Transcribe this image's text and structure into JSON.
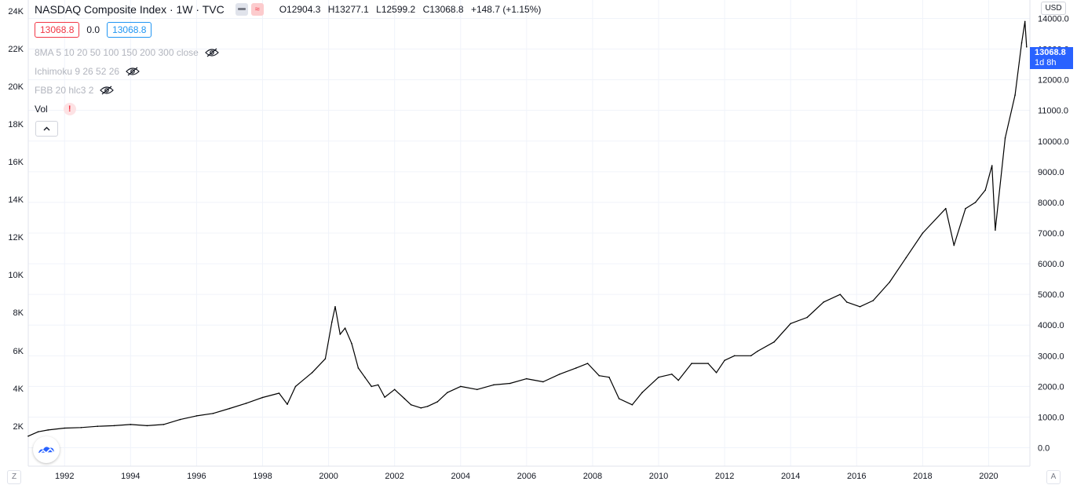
{
  "header": {
    "title": "NASDAQ Composite Index · 1W · TVC",
    "ohlc": {
      "open": "O12904.3",
      "high": "H13277.1",
      "low": "L12599.2",
      "close": "C13068.8",
      "change": "+148.7 (+1.15%)"
    },
    "sell_price": "13068.8",
    "spread": "0.0",
    "buy_price": "13068.8",
    "market_icon": "flag-icon",
    "wave_icon_label": "≈"
  },
  "indicators": [
    {
      "label": "8MA 5 10 20 50 100 150 200 300 close",
      "icon": "eye-off-icon"
    },
    {
      "label": "Ichimoku 9 26 52 26",
      "icon": "eye-off-icon"
    },
    {
      "label": "FBB 20 hlc3 2",
      "icon": "eye-off-icon"
    },
    {
      "label": "Vol",
      "icon": "warning-icon",
      "warning": "!"
    }
  ],
  "left_axis": {
    "labels": [
      "24K",
      "22K",
      "20K",
      "18K",
      "16K",
      "14K",
      "12K",
      "10K",
      "8K",
      "6K",
      "4K",
      "2K"
    ]
  },
  "right_axis": {
    "currency": "USD",
    "labels": [
      "14000.0",
      "13000.0",
      "12000.0",
      "11000.0",
      "10000.0",
      "9000.0",
      "8000.0",
      "7000.0",
      "6000.0",
      "5000.0",
      "4000.0",
      "3000.0",
      "2000.0",
      "1000.0",
      "0.0"
    ],
    "last_price": "13068.8",
    "countdown": "1d 8h"
  },
  "bottom_axis": {
    "labels": [
      "1992",
      "1994",
      "1996",
      "1998",
      "2000",
      "2002",
      "2004",
      "2006",
      "2008",
      "2010",
      "2012",
      "2014",
      "2016",
      "2018",
      "2020"
    ],
    "left_button": "Z",
    "right_button": "A"
  },
  "colors": {
    "line": "#000000",
    "grid": "#f0f3fa",
    "sell": "#f23645",
    "buy": "#2196f3",
    "price_tag": "#2962ff",
    "indicator_text": "#b2b5be"
  },
  "chart_data": {
    "type": "line",
    "title": "NASDAQ Composite Index · 1W · TVC",
    "xlabel": "",
    "ylabel": "",
    "x_range": [
      1990.9,
      2021.25
    ],
    "ylim_right": [
      -600,
      14600
    ],
    "grid": true,
    "series": [
      {
        "name": "",
        "x": [
          1990.9,
          1991.2,
          1991.5,
          1992.0,
          1992.5,
          1993.0,
          1993.5,
          1994.0,
          1994.5,
          1995.0,
          1995.5,
          1996.0,
          1996.5,
          1997.0,
          1997.5,
          1998.0,
          1998.5,
          1998.75,
          1999.0,
          1999.5,
          1999.9,
          2000.1,
          2000.2,
          2000.35,
          2000.5,
          2000.7,
          2000.9,
          2001.1,
          2001.3,
          2001.5,
          2001.7,
          2002.0,
          2002.3,
          2002.5,
          2002.8,
          2003.0,
          2003.3,
          2003.6,
          2004.0,
          2004.5,
          2005.0,
          2005.5,
          2006.0,
          2006.5,
          2007.0,
          2007.5,
          2007.85,
          2008.2,
          2008.5,
          2008.8,
          2009.2,
          2009.5,
          2010.0,
          2010.4,
          2010.6,
          2011.0,
          2011.5,
          2011.75,
          2012.0,
          2012.3,
          2012.8,
          2013.0,
          2013.5,
          2014.0,
          2014.5,
          2015.0,
          2015.5,
          2015.7,
          2016.1,
          2016.5,
          2017.0,
          2017.5,
          2018.0,
          2018.7,
          2018.95,
          2019.3,
          2019.6,
          2019.9,
          2020.1,
          2020.2,
          2020.5,
          2020.8,
          2021.0,
          2021.1,
          2021.15
        ],
        "y": [
          380,
          520,
          580,
          640,
          660,
          700,
          720,
          760,
          720,
          760,
          920,
          1040,
          1120,
          1280,
          1450,
          1640,
          1780,
          1420,
          2000,
          2450,
          2900,
          4100,
          4600,
          3700,
          3900,
          3400,
          2600,
          2300,
          2000,
          2050,
          1650,
          1900,
          1600,
          1400,
          1300,
          1350,
          1500,
          1800,
          2000,
          1900,
          2050,
          2100,
          2250,
          2150,
          2400,
          2600,
          2750,
          2350,
          2300,
          1600,
          1400,
          1800,
          2300,
          2400,
          2200,
          2750,
          2750,
          2450,
          2850,
          3000,
          3000,
          3150,
          3450,
          4050,
          4250,
          4750,
          5000,
          4750,
          4600,
          4800,
          5400,
          6200,
          7000,
          7800,
          6600,
          7800,
          8000,
          8400,
          9200,
          7100,
          10100,
          11500,
          13200,
          13900,
          13068.8
        ]
      }
    ]
  }
}
